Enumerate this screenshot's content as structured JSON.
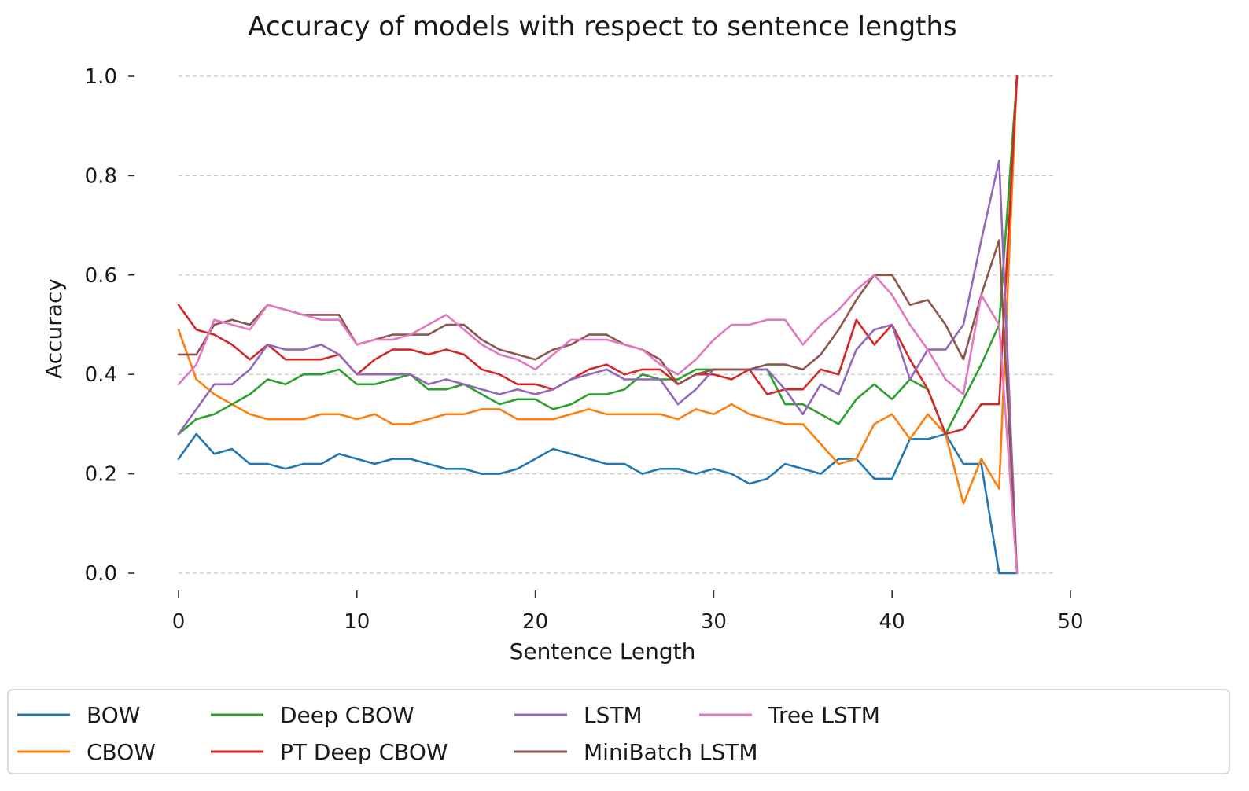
{
  "chart_data": {
    "type": "line",
    "title": "Accuracy of models with respect to sentence lengths",
    "xlabel": "Sentence Length",
    "ylabel": "Accuracy",
    "xlim": [
      0,
      50
    ],
    "ylim": [
      0,
      1
    ],
    "xticks": [
      0,
      10,
      20,
      30,
      40,
      50
    ],
    "yticks": [
      0.0,
      0.2,
      0.4,
      0.6,
      0.8,
      1.0
    ],
    "ytick_labels": [
      "0.0",
      "0.2",
      "0.4",
      "0.6",
      "0.8",
      "1.0"
    ],
    "grid": "y-dashed",
    "legend_placement": "bottom",
    "x": [
      0,
      1,
      2,
      3,
      4,
      5,
      6,
      7,
      8,
      9,
      10,
      11,
      12,
      13,
      14,
      15,
      16,
      17,
      18,
      19,
      20,
      21,
      22,
      23,
      24,
      25,
      26,
      27,
      28,
      29,
      30,
      31,
      32,
      33,
      34,
      35,
      36,
      37,
      38,
      39,
      40,
      41,
      42,
      43,
      44,
      45,
      46,
      47
    ],
    "series": [
      {
        "name": "BOW",
        "color": "#1f77b4",
        "values": [
          0.23,
          0.28,
          0.24,
          0.25,
          0.22,
          0.22,
          0.21,
          0.22,
          0.22,
          0.24,
          0.23,
          0.22,
          0.23,
          0.23,
          0.22,
          0.21,
          0.21,
          0.2,
          0.2,
          0.21,
          0.23,
          0.25,
          0.24,
          0.23,
          0.22,
          0.22,
          0.2,
          0.21,
          0.21,
          0.2,
          0.21,
          0.2,
          0.18,
          0.19,
          0.22,
          0.21,
          0.2,
          0.23,
          0.23,
          0.19,
          0.19,
          0.27,
          0.27,
          0.28,
          0.22,
          0.22,
          0.0,
          0.0
        ]
      },
      {
        "name": "CBOW",
        "color": "#ff7f0e",
        "values": [
          0.49,
          0.39,
          0.36,
          0.34,
          0.32,
          0.31,
          0.31,
          0.31,
          0.32,
          0.32,
          0.31,
          0.32,
          0.3,
          0.3,
          0.31,
          0.32,
          0.32,
          0.33,
          0.33,
          0.31,
          0.31,
          0.31,
          0.32,
          0.33,
          0.32,
          0.32,
          0.32,
          0.32,
          0.31,
          0.33,
          0.32,
          0.34,
          0.32,
          0.31,
          0.3,
          0.3,
          0.26,
          0.22,
          0.23,
          0.3,
          0.32,
          0.27,
          0.32,
          0.28,
          0.14,
          0.23,
          0.17,
          1.0
        ]
      },
      {
        "name": "Deep CBOW",
        "color": "#2ca02c",
        "values": [
          0.28,
          0.31,
          0.32,
          0.34,
          0.36,
          0.39,
          0.38,
          0.4,
          0.4,
          0.41,
          0.38,
          0.38,
          0.39,
          0.4,
          0.37,
          0.37,
          0.38,
          0.36,
          0.34,
          0.35,
          0.35,
          0.33,
          0.34,
          0.36,
          0.36,
          0.37,
          0.4,
          0.39,
          0.39,
          0.41,
          0.41,
          0.41,
          0.41,
          0.41,
          0.34,
          0.34,
          0.32,
          0.3,
          0.35,
          0.38,
          0.35,
          0.39,
          0.37,
          0.28,
          0.35,
          0.42,
          0.5,
          1.0
        ]
      },
      {
        "name": "PT Deep CBOW",
        "color": "#d62728",
        "values": [
          0.54,
          0.49,
          0.48,
          0.46,
          0.43,
          0.46,
          0.43,
          0.43,
          0.43,
          0.44,
          0.4,
          0.43,
          0.45,
          0.45,
          0.44,
          0.45,
          0.44,
          0.41,
          0.4,
          0.38,
          0.38,
          0.37,
          0.39,
          0.41,
          0.42,
          0.4,
          0.41,
          0.41,
          0.38,
          0.4,
          0.4,
          0.39,
          0.41,
          0.36,
          0.37,
          0.37,
          0.41,
          0.4,
          0.51,
          0.46,
          0.5,
          0.43,
          0.37,
          0.28,
          0.29,
          0.34,
          0.34,
          1.0
        ]
      },
      {
        "name": "LSTM",
        "color": "#9467bd",
        "values": [
          0.28,
          0.33,
          0.38,
          0.38,
          0.41,
          0.46,
          0.45,
          0.45,
          0.46,
          0.44,
          0.4,
          0.4,
          0.4,
          0.4,
          0.38,
          0.39,
          0.38,
          0.37,
          0.36,
          0.37,
          0.36,
          0.37,
          0.39,
          0.4,
          0.41,
          0.39,
          0.39,
          0.39,
          0.34,
          0.37,
          0.41,
          0.41,
          0.41,
          0.41,
          0.37,
          0.32,
          0.38,
          0.36,
          0.45,
          0.49,
          0.5,
          0.39,
          0.45,
          0.45,
          0.5,
          0.67,
          0.83,
          0.0
        ]
      },
      {
        "name": "MiniBatch LSTM",
        "color": "#8c564b",
        "values": [
          0.44,
          0.44,
          0.5,
          0.51,
          0.5,
          0.54,
          0.53,
          0.52,
          0.52,
          0.52,
          0.46,
          0.47,
          0.48,
          0.48,
          0.48,
          0.5,
          0.5,
          0.47,
          0.45,
          0.44,
          0.43,
          0.45,
          0.46,
          0.48,
          0.48,
          0.46,
          0.45,
          0.43,
          0.38,
          0.4,
          0.41,
          0.41,
          0.41,
          0.42,
          0.42,
          0.41,
          0.44,
          0.49,
          0.55,
          0.6,
          0.6,
          0.54,
          0.55,
          0.5,
          0.43,
          0.56,
          0.67,
          0.0
        ]
      },
      {
        "name": "Tree LSTM",
        "color": "#e377c2",
        "values": [
          0.38,
          0.42,
          0.51,
          0.5,
          0.49,
          0.54,
          0.53,
          0.52,
          0.51,
          0.51,
          0.46,
          0.47,
          0.47,
          0.48,
          0.5,
          0.52,
          0.49,
          0.46,
          0.44,
          0.43,
          0.41,
          0.44,
          0.47,
          0.47,
          0.47,
          0.46,
          0.45,
          0.42,
          0.4,
          0.43,
          0.47,
          0.5,
          0.5,
          0.51,
          0.51,
          0.46,
          0.5,
          0.53,
          0.57,
          0.6,
          0.56,
          0.5,
          0.45,
          0.39,
          0.36,
          0.56,
          0.5,
          0.0
        ]
      }
    ]
  }
}
